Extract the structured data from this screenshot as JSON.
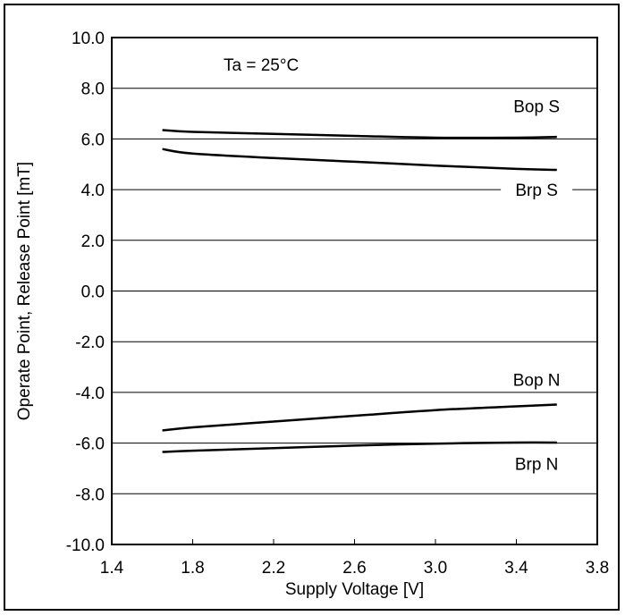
{
  "chart_data": {
    "type": "line",
    "title": "",
    "xlabel": "Supply Voltage [V]",
    "ylabel": "Operate Point, Release Point [mT]",
    "xlim": [
      1.4,
      3.8
    ],
    "ylim": [
      -10.0,
      10.0
    ],
    "x_ticks": [
      "1.4",
      "1.8",
      "2.2",
      "2.6",
      "3.0",
      "3.4",
      "3.8"
    ],
    "y_ticks": [
      "10.0",
      "8.0",
      "6.0",
      "4.0",
      "2.0",
      "0.0",
      "-2.0",
      "-4.0",
      "-6.0",
      "-8.0",
      "-10.0"
    ],
    "grid": "horizontal",
    "annotation": "Ta = 25°C",
    "series": [
      {
        "name": "Bop S",
        "x": [
          1.65,
          1.8,
          2.2,
          2.6,
          3.0,
          3.4,
          3.6
        ],
        "y": [
          6.35,
          6.28,
          6.2,
          6.12,
          6.05,
          6.05,
          6.08
        ]
      },
      {
        "name": "Brp S",
        "x": [
          1.65,
          1.8,
          2.2,
          2.6,
          3.0,
          3.4,
          3.6
        ],
        "y": [
          5.6,
          5.42,
          5.25,
          5.1,
          4.95,
          4.82,
          4.78
        ]
      },
      {
        "name": "Bop N",
        "x": [
          1.65,
          1.8,
          2.2,
          2.6,
          3.0,
          3.4,
          3.6
        ],
        "y": [
          -5.5,
          -5.38,
          -5.15,
          -4.92,
          -4.7,
          -4.55,
          -4.48
        ]
      },
      {
        "name": "Brp N",
        "x": [
          1.65,
          1.8,
          2.2,
          2.6,
          3.0,
          3.4,
          3.6
        ],
        "y": [
          -6.35,
          -6.3,
          -6.2,
          -6.1,
          -6.02,
          -5.98,
          -5.98
        ]
      }
    ],
    "series_labels": [
      {
        "series": 0,
        "text": "Bop S",
        "x": 3.5,
        "y": 7.3
      },
      {
        "series": 1,
        "text": "Brp S",
        "x": 3.5,
        "y": 4.0
      },
      {
        "series": 2,
        "text": "Bop N",
        "x": 3.5,
        "y": -3.5
      },
      {
        "series": 3,
        "text": "Brp N",
        "x": 3.5,
        "y": -6.8
      }
    ],
    "line_color": "#000000"
  }
}
